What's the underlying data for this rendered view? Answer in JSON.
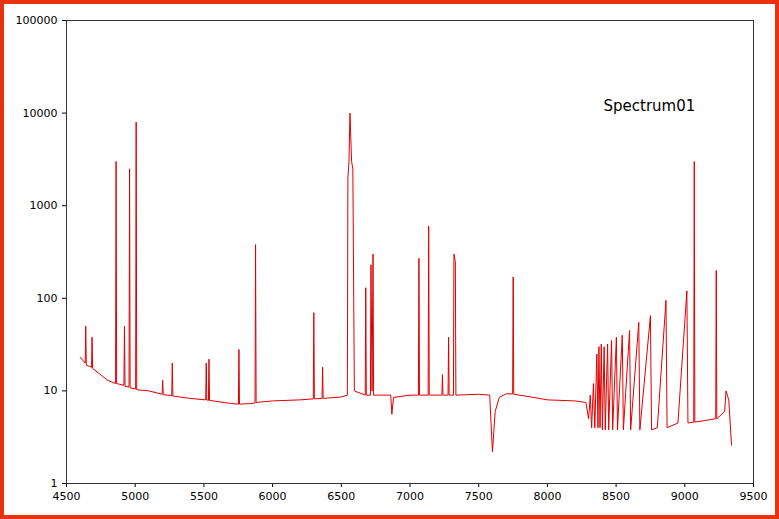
{
  "chart_data": {
    "type": "line",
    "annotations": [
      "Spectrum01"
    ],
    "color": "#e00000",
    "log": "y",
    "grid": false,
    "xlim": [
      4500,
      9500
    ],
    "xticks": [
      4500,
      5000,
      5500,
      6000,
      6500,
      7000,
      7500,
      8000,
      8500,
      9000,
      9500
    ],
    "ylim": [
      1,
      100000
    ],
    "yticks": [
      1,
      10,
      100,
      1000,
      10000,
      100000
    ],
    "x": [
      4600,
      4636,
      4640,
      4644,
      4682,
      4686,
      4690,
      4800,
      4857,
      4861,
      4865,
      4918,
      4922,
      4926,
      4955,
      4959,
      4963,
      5003,
      5007,
      5011,
      5100,
      5196,
      5200,
      5204,
      5266,
      5270,
      5274,
      5400,
      5513,
      5517,
      5521,
      5533,
      5537,
      5541,
      5700,
      5751,
      5755,
      5759,
      5850,
      5872,
      5876,
      5880,
      6000,
      6200,
      6296,
      6300,
      6304,
      6360,
      6364,
      6368,
      6500,
      6544,
      6548,
      6556,
      6563,
      6575,
      6584,
      6595,
      6674,
      6678,
      6682,
      6712,
      6716,
      6724,
      6731,
      6735,
      6860,
      6868,
      6880,
      7000,
      7061,
      7065,
      7069,
      7132,
      7136,
      7140,
      7232,
      7236,
      7240,
      7277,
      7281,
      7285,
      7316,
      7320,
      7330,
      7334,
      7500,
      7580,
      7600,
      7620,
      7650,
      7700,
      7747,
      7751,
      7755,
      7900,
      8000,
      8200,
      8280,
      8300,
      8312,
      8322,
      8335,
      8345,
      8360,
      8368,
      8375,
      8383,
      8392,
      8400,
      8413,
      8421,
      8438,
      8446,
      8467,
      8475,
      8502,
      8510,
      8545,
      8553,
      8598,
      8606,
      8665,
      8673,
      8750,
      8758,
      8800,
      8863,
      8871,
      8950,
      9015,
      9023,
      9065,
      9069,
      9073,
      9150,
      9225,
      9229,
      9233,
      9290,
      9300,
      9320,
      9340
    ],
    "values": [
      23,
      20,
      50,
      19,
      18,
      38,
      17.5,
      13,
      12,
      3000,
      12,
      11.5,
      50,
      11.2,
      11,
      2500,
      10.8,
      10.5,
      8000,
      10.3,
      10,
      9.2,
      13,
      9.1,
      8.9,
      20,
      8.8,
      8.3,
      8,
      20,
      8,
      7.9,
      22,
      7.9,
      7.3,
      7.2,
      28,
      7.2,
      7.3,
      7.4,
      380,
      7.5,
      7.8,
      8,
      8.2,
      70,
      8.2,
      8.3,
      18,
      8.3,
      8.6,
      9,
      2000,
      3000,
      10000,
      3000,
      2500,
      10,
      9,
      130,
      9,
      9,
      230,
      10,
      300,
      9,
      9,
      5.6,
      8.5,
      9,
      9,
      270,
      9,
      9,
      600,
      9,
      9,
      15,
      9,
      9,
      38,
      9,
      9,
      300,
      250,
      9,
      9.2,
      9,
      2.2,
      6,
      8.5,
      9.3,
      9.3,
      170,
      9.2,
      8.5,
      8,
      7.8,
      7.5,
      5,
      9,
      4,
      12,
      4,
      25,
      4,
      30,
      4,
      32,
      3.8,
      30,
      3.8,
      32,
      3.8,
      35,
      3.8,
      38,
      3.8,
      40,
      3.8,
      45,
      3.8,
      55,
      3.8,
      65,
      3.8,
      4,
      95,
      4,
      4.5,
      120,
      4.5,
      4.6,
      3000,
      4.6,
      4.8,
      5,
      200,
      5,
      6,
      10,
      8,
      2.6
    ]
  }
}
